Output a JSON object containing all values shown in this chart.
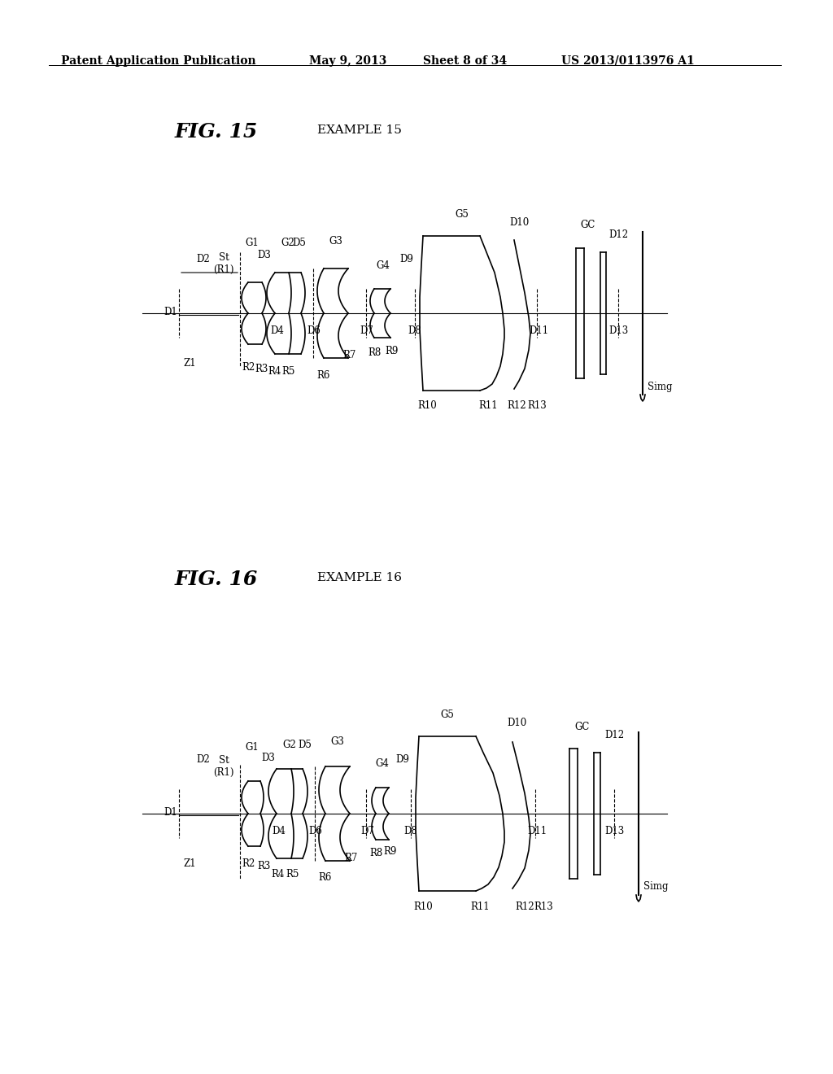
{
  "background_color": "#ffffff",
  "header_text": "Patent Application Publication",
  "header_date": "May 9, 2013",
  "header_sheet": "Sheet 8 of 34",
  "header_patent": "US 2013/0113976 A1",
  "fig15_title": "FIG. 15",
  "fig15_example": "EXAMPLE 15",
  "fig16_title": "FIG. 16",
  "fig16_example": "EXAMPLE 16"
}
